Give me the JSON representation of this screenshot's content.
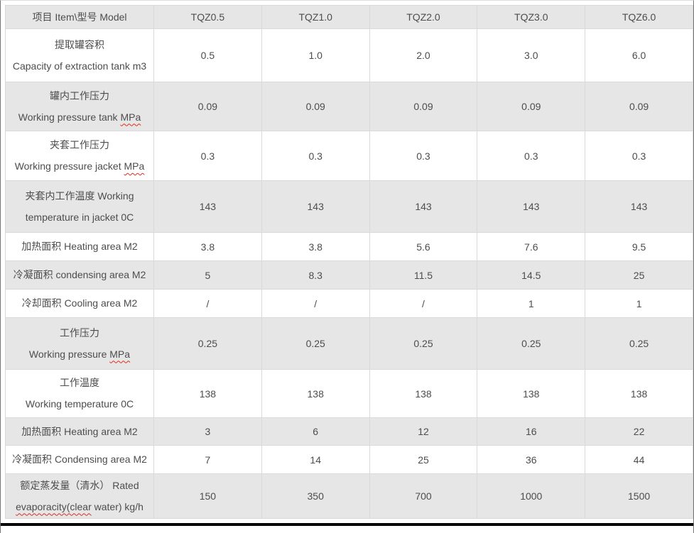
{
  "header": {
    "item_model_label": "项目 Item\\型号 Model",
    "models": [
      "TQZ0.5",
      "TQZ1.0",
      "TQZ2.0",
      "TQZ3.0",
      "TQZ6.0"
    ]
  },
  "rows": [
    {
      "label_lines": [
        [
          {
            "text": "提取罐容积"
          }
        ],
        [
          {
            "text": "Capacity of extraction tank m3"
          }
        ]
      ],
      "values": [
        "0.5",
        "1.0",
        "2.0",
        "3.0",
        "6.0"
      ],
      "shaded": false
    },
    {
      "label_lines": [
        [
          {
            "text": "罐内工作压力"
          }
        ],
        [
          {
            "text": "Working pressure tank "
          },
          {
            "text": "MPa",
            "misspelled": true
          }
        ]
      ],
      "values": [
        "0.09",
        "0.09",
        "0.09",
        "0.09",
        "0.09"
      ],
      "shaded": true
    },
    {
      "label_lines": [
        [
          {
            "text": "夹套工作压力"
          }
        ],
        [
          {
            "text": "Working pressure jacket "
          },
          {
            "text": "MPa",
            "misspelled": true
          }
        ]
      ],
      "values": [
        "0.3",
        "0.3",
        "0.3",
        "0.3",
        "0.3"
      ],
      "shaded": false
    },
    {
      "label_lines": [
        [
          {
            "text": "夹套内工作温度 Working"
          }
        ],
        [
          {
            "text": "temperature in jacket 0C"
          }
        ]
      ],
      "values": [
        "143",
        "143",
        "143",
        "143",
        "143"
      ],
      "shaded": true
    },
    {
      "label_lines": [
        [
          {
            "text": "加热面积 Heating area M2"
          }
        ]
      ],
      "values": [
        "3.8",
        "3.8",
        "5.6",
        "7.6",
        "9.5"
      ],
      "shaded": false
    },
    {
      "label_lines": [
        [
          {
            "text": "冷凝面积 condensing area M2"
          }
        ]
      ],
      "values": [
        "5",
        "8.3",
        "11.5",
        "14.5",
        "25"
      ],
      "shaded": true
    },
    {
      "label_lines": [
        [
          {
            "text": "冷却面积 Cooling area M2"
          }
        ]
      ],
      "values": [
        "/",
        "/",
        "/",
        "1",
        "1"
      ],
      "shaded": false
    },
    {
      "label_lines": [
        [
          {
            "text": "工作压力"
          }
        ],
        [
          {
            "text": "Working pressure "
          },
          {
            "text": "MPa",
            "misspelled": true
          }
        ]
      ],
      "values": [
        "0.25",
        "0.25",
        "0.25",
        "0.25",
        "0.25"
      ],
      "shaded": true
    },
    {
      "label_lines": [
        [
          {
            "text": "工作温度"
          }
        ],
        [
          {
            "text": "Working temperature 0C"
          }
        ]
      ],
      "values": [
        "138",
        "138",
        "138",
        "138",
        "138"
      ],
      "shaded": false
    },
    {
      "label_lines": [
        [
          {
            "text": "加热面积 Heating area M2"
          }
        ]
      ],
      "values": [
        "3",
        "6",
        "12",
        "16",
        "22"
      ],
      "shaded": true
    },
    {
      "label_lines": [
        [
          {
            "text": "冷凝面积 Condensing area M2"
          }
        ]
      ],
      "values": [
        "7",
        "14",
        "25",
        "36",
        "44"
      ],
      "shaded": false
    },
    {
      "label_lines": [
        [
          {
            "text": "额定蒸发量（清水） Rated"
          }
        ],
        [
          {
            "text": "evaporacity(clear",
            "misspelled": true
          },
          {
            "text": " water) kg/h"
          }
        ]
      ],
      "values": [
        "150",
        "350",
        "700",
        "1000",
        "1500"
      ],
      "shaded": true
    }
  ],
  "colors": {
    "shaded_row": "#e6e6e6",
    "cell_border": "#d9d9d9",
    "text": "#4d4d4d",
    "squiggle": "#e02b20",
    "bottom_rule": "#000000"
  }
}
